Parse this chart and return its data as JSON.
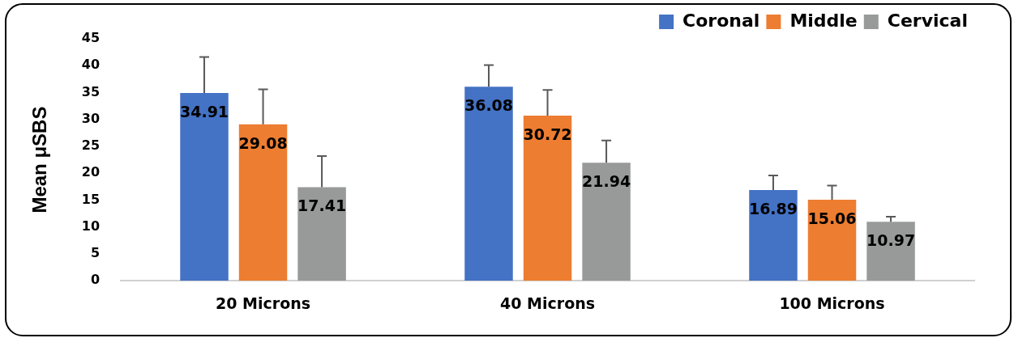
{
  "chart_data": {
    "type": "bar",
    "ylabel": "Mean μSBS",
    "categories": [
      "20 Microns",
      "40 Microns",
      "100 Microns"
    ],
    "series": [
      {
        "name": "Coronal",
        "color": "#4472c4",
        "values": [
          34.91,
          36.08,
          16.89
        ],
        "errors": [
          [
            34.91,
            41.6
          ],
          [
            36.08,
            40.1
          ],
          [
            16.89,
            19.6
          ]
        ]
      },
      {
        "name": "Middle",
        "color": "#ed7d31",
        "values": [
          29.08,
          30.72,
          15.06
        ],
        "errors": [
          [
            29.08,
            35.6
          ],
          [
            30.72,
            35.5
          ],
          [
            15.06,
            17.7
          ]
        ]
      },
      {
        "name": "Cervical",
        "color": "#989a9a",
        "values": [
          17.41,
          21.94,
          10.97
        ],
        "errors": [
          [
            17.41,
            23.2
          ],
          [
            21.94,
            26.1
          ],
          [
            10.97,
            11.9
          ]
        ]
      }
    ],
    "ylim": [
      0,
      45
    ],
    "yticks": [
      0,
      5,
      10,
      15,
      20,
      25,
      30,
      35,
      40,
      45
    ],
    "grid": false,
    "legend": "top right",
    "data_labels": true
  }
}
